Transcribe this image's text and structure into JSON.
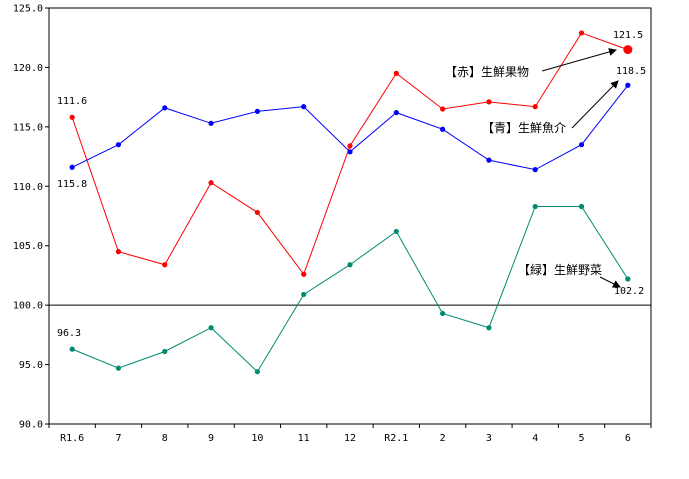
{
  "chart_data": {
    "type": "line",
    "categories": [
      "R1.6",
      "7",
      "8",
      "9",
      "10",
      "11",
      "12",
      "R2.1",
      "2",
      "3",
      "4",
      "5",
      "6"
    ],
    "ylim": [
      90,
      125
    ],
    "yticks": [
      "90.0",
      "95.0",
      "100.0",
      "105.0",
      "110.0",
      "115.0",
      "120.0",
      "125.0"
    ],
    "reference_line": 100,
    "grid": false,
    "series": [
      {
        "key": "red",
        "color": "#ff0000",
        "values": [
          115.8,
          104.5,
          103.4,
          110.3,
          107.8,
          102.6,
          113.4,
          119.5,
          116.5,
          117.1,
          116.7,
          122.9,
          121.5
        ]
      },
      {
        "key": "blue",
        "color": "#0000ff",
        "values": [
          111.6,
          113.5,
          116.6,
          115.3,
          116.3,
          116.7,
          112.9,
          116.2,
          114.8,
          112.2,
          111.4,
          113.5,
          118.5
        ]
      },
      {
        "key": "green",
        "color": "#008b70",
        "values": [
          96.3,
          94.7,
          96.1,
          98.1,
          94.4,
          100.9,
          103.4,
          106.2,
          99.3,
          98.1,
          108.3,
          108.3,
          102.2
        ]
      }
    ],
    "annotations": [
      {
        "id": "red-name",
        "text": "【赤】生鮮果物"
      },
      {
        "id": "blue-name",
        "text": "【青】生鮮魚介"
      },
      {
        "id": "green-name",
        "text": "【緑】生鮮野菜"
      }
    ],
    "data_labels": [
      {
        "id": "lbl-111-6",
        "text": "111.6"
      },
      {
        "id": "lbl-115-8",
        "text": "115.8"
      },
      {
        "id": "lbl-96-3",
        "text": "96.3"
      },
      {
        "id": "lbl-121-5",
        "text": "121.5"
      },
      {
        "id": "lbl-118-5",
        "text": "118.5"
      },
      {
        "id": "lbl-102-2",
        "text": "102.2"
      }
    ]
  }
}
